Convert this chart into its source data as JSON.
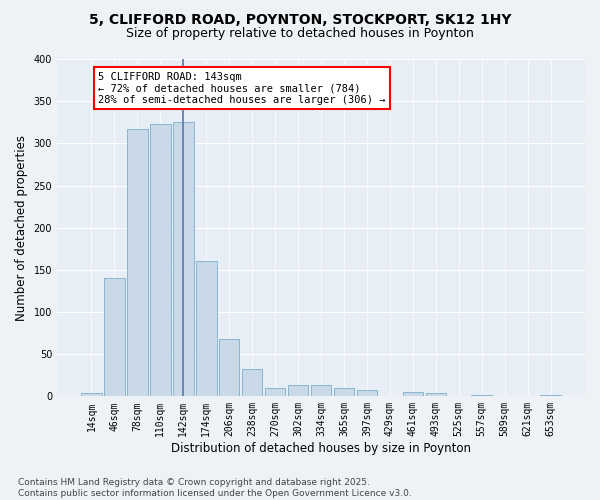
{
  "title_line1": "5, CLIFFORD ROAD, POYNTON, STOCKPORT, SK12 1HY",
  "title_line2": "Size of property relative to detached houses in Poynton",
  "xlabel": "Distribution of detached houses by size in Poynton",
  "ylabel": "Number of detached properties",
  "categories": [
    "14sqm",
    "46sqm",
    "78sqm",
    "110sqm",
    "142sqm",
    "174sqm",
    "206sqm",
    "238sqm",
    "270sqm",
    "302sqm",
    "334sqm",
    "365sqm",
    "397sqm",
    "429sqm",
    "461sqm",
    "493sqm",
    "525sqm",
    "557sqm",
    "589sqm",
    "621sqm",
    "653sqm"
  ],
  "values": [
    4,
    140,
    317,
    323,
    325,
    160,
    68,
    33,
    10,
    13,
    14,
    10,
    7,
    0,
    5,
    4,
    0,
    1,
    0,
    0,
    2
  ],
  "bar_color": "#c9d9e8",
  "bar_edge_color": "#8ab4d0",
  "vline_color": "#5577aa",
  "vline_x": 4,
  "annotation_text": "5 CLIFFORD ROAD: 143sqm\n← 72% of detached houses are smaller (784)\n28% of semi-detached houses are larger (306) →",
  "annotation_box_color": "white",
  "annotation_box_edge_color": "red",
  "ylim": [
    0,
    400
  ],
  "yticks": [
    0,
    50,
    100,
    150,
    200,
    250,
    300,
    350,
    400
  ],
  "footnote": "Contains HM Land Registry data © Crown copyright and database right 2025.\nContains public sector information licensed under the Open Government Licence v3.0.",
  "bg_color": "#eef2f7",
  "plot_bg_color": "#e8eef5",
  "grid_color": "white",
  "title_fontsize": 10,
  "subtitle_fontsize": 9,
  "axis_label_fontsize": 8.5,
  "tick_fontsize": 7,
  "footnote_fontsize": 6.5,
  "annotation_fontsize": 7.5
}
